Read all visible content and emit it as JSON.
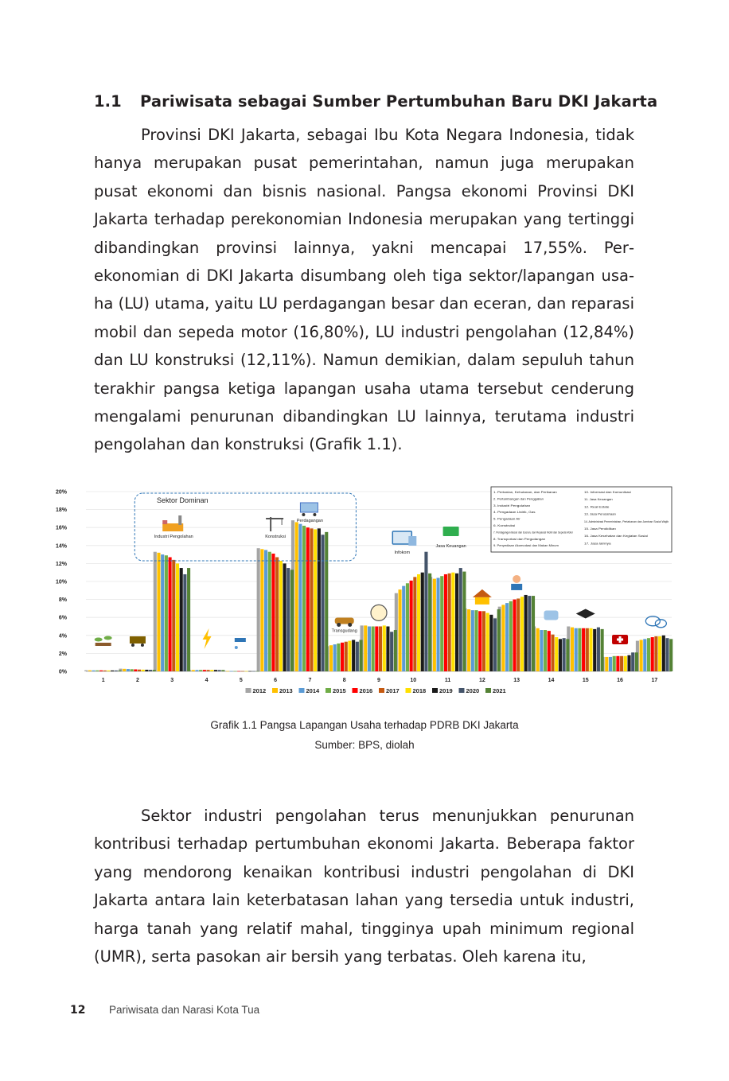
{
  "section": {
    "number": "1.1",
    "title": "Pariwisata sebagai Sumber Pertumbuhan Baru DKI Jakarta"
  },
  "paragraphs": [
    "Provinsi DKI Jakarta, sebagai Ibu Kota Negara Indonesia, tidak hanya merupakan pusat pemerintahan, namun juga merupakan pusat ekonomi dan bisnis nasional. Pangsa ekonomi Provinsi DKI Jakarta terhadap perekonomian Indonesia merupakan yang ter­tinggi dibandingkan provinsi lainnya, yakni mencapai 17,55%. Per­ekonomian di DKI Jakarta disumbang oleh tiga sektor/lapangan usa­ha (LU) utama, yaitu LU perdagangan besar dan eceran, dan reparasi mobil dan sepeda motor (16,80%), LU industri pengolahan (12,84%) dan LU konstruksi (12,11%). Namun demikian, dalam sepuluh tahun terakhir pangsa ketiga lapangan usaha utama tersebut cenderung mengalami penurunan dibandingkan LU lainnya, terutama industri pengolahan dan konstruksi (Grafik 1.1).",
    "Sektor industri pengolahan terus menunjukkan penurunan kontribusi terhadap pertumbuhan ekonomi Jakarta. Beberapa fak­tor yang mendorong kenaikan kontribusi industri pengolahan di DKI Jakarta antara lain keterbatasan lahan yang tersedia untuk indus­tri, harga tanah yang relatif mahal, tingginya upah minimum regio­nal (UMR), serta pasokan air bersih yang terbatas. Oleh karena itu,"
  ],
  "caption": {
    "title": "Grafik 1.1 Pangsa Lapangan Usaha terhadap PDRB DKI Jakarta",
    "source": "Sumber: BPS, diolah"
  },
  "footer": {
    "page_number": "12",
    "book_title": "Pariwisata dan Narasi Kota Tua"
  },
  "chart_data": {
    "type": "bar",
    "ylim": [
      0,
      20
    ],
    "yticks": [
      "0%",
      "2%",
      "4%",
      "6%",
      "8%",
      "10%",
      "12%",
      "14%",
      "16%",
      "18%",
      "20%"
    ],
    "categories": [
      "1",
      "2",
      "3",
      "4",
      "5",
      "6",
      "7",
      "8",
      "9",
      "10",
      "11",
      "12",
      "13",
      "14",
      "15",
      "16",
      "17"
    ],
    "dominant_box_label": "Sektor Dominan",
    "sector_labels": [
      {
        "category": "3",
        "text": "Industri Pengolahan",
        "icon": "factory-icon"
      },
      {
        "category": "6",
        "text": "Konstruksi",
        "icon": "crane-icon"
      },
      {
        "category": "7",
        "text": "Perdagangan",
        "icon": "shop-cart-icon"
      },
      {
        "category": "8",
        "text": "Transgudang",
        "icon": "car-icon"
      },
      {
        "category": "10",
        "text": "Infokom",
        "icon": "computer-icon"
      },
      {
        "category": "11",
        "text": "Jasa Keuangan",
        "icon": "money-icon"
      }
    ],
    "category_icons": [
      {
        "category": "1",
        "icon": "plant-icon"
      },
      {
        "category": "2",
        "icon": "mine-cart-icon"
      },
      {
        "category": "4",
        "icon": "lightning-icon"
      },
      {
        "category": "5",
        "icon": "water-tap-icon"
      },
      {
        "category": "9",
        "icon": "food-icon"
      },
      {
        "category": "12",
        "icon": "house-icon"
      },
      {
        "category": "13",
        "icon": "worker-icon"
      },
      {
        "category": "14",
        "icon": "government-icon"
      },
      {
        "category": "15",
        "icon": "graduation-cap-icon"
      },
      {
        "category": "16",
        "icon": "medical-kit-icon"
      },
      {
        "category": "17",
        "icon": "speech-bubble-icon"
      }
    ],
    "legend_position": "bottom",
    "series": [
      {
        "name": "2012",
        "color": "#a5a5a5",
        "values": [
          0.12,
          0.3,
          13.3,
          0.15,
          0.03,
          13.7,
          16.8,
          2.8,
          5.1,
          8.7,
          10.5,
          7.0,
          7.2,
          5.0,
          5.0,
          1.6,
          3.4
        ]
      },
      {
        "name": "2013",
        "color": "#ffc000",
        "values": [
          0.12,
          0.28,
          13.2,
          0.15,
          0.03,
          13.6,
          16.6,
          2.9,
          5.1,
          9.1,
          10.3,
          6.9,
          7.4,
          4.8,
          4.9,
          1.6,
          3.5
        ]
      },
      {
        "name": "2014",
        "color": "#5b9bd5",
        "values": [
          0.11,
          0.26,
          13.0,
          0.15,
          0.03,
          13.5,
          16.4,
          3.0,
          5.0,
          9.5,
          10.4,
          6.8,
          7.6,
          4.6,
          4.8,
          1.6,
          3.6
        ]
      },
      {
        "name": "2015",
        "color": "#70ad47",
        "values": [
          0.11,
          0.24,
          12.9,
          0.16,
          0.03,
          13.3,
          16.2,
          3.1,
          5.0,
          9.8,
          10.6,
          6.8,
          7.8,
          4.6,
          4.8,
          1.7,
          3.7
        ]
      },
      {
        "name": "2016",
        "color": "#ff0000",
        "values": [
          0.11,
          0.22,
          12.7,
          0.16,
          0.03,
          13.1,
          16.0,
          3.2,
          5.0,
          10.1,
          10.8,
          6.7,
          8.0,
          4.5,
          4.8,
          1.7,
          3.8
        ]
      },
      {
        "name": "2017",
        "color": "#c55a11",
        "values": [
          0.1,
          0.2,
          12.4,
          0.16,
          0.03,
          12.7,
          15.9,
          3.3,
          5.0,
          10.5,
          10.9,
          6.7,
          8.1,
          4.1,
          4.8,
          1.7,
          3.9
        ]
      },
      {
        "name": "2018",
        "color": "#ffe000",
        "values": [
          0.1,
          0.19,
          12.0,
          0.16,
          0.03,
          12.3,
          15.8,
          3.4,
          5.1,
          10.8,
          11.0,
          6.5,
          8.3,
          3.8,
          4.8,
          1.7,
          3.9
        ]
      },
      {
        "name": "2019",
        "color": "#1a1a1a",
        "values": [
          0.1,
          0.18,
          11.5,
          0.16,
          0.03,
          12.0,
          15.9,
          3.5,
          5.0,
          11.0,
          10.9,
          6.3,
          8.5,
          3.6,
          4.7,
          1.8,
          4.0
        ]
      },
      {
        "name": "2020",
        "color": "#44546a",
        "values": [
          0.1,
          0.17,
          10.8,
          0.15,
          0.03,
          11.5,
          15.2,
          3.3,
          4.4,
          13.3,
          11.5,
          5.9,
          8.4,
          3.7,
          4.9,
          2.1,
          3.7
        ]
      },
      {
        "name": "2021",
        "color": "#548235",
        "values": [
          0.1,
          0.16,
          11.5,
          0.15,
          0.03,
          11.3,
          15.5,
          3.5,
          4.6,
          10.9,
          11.1,
          6.9,
          8.4,
          3.6,
          4.7,
          2.1,
          3.6
        ]
      }
    ],
    "legend_sectors": [
      "1. Pertanian, Kehutanan, dan Perikanan",
      "2. Pertambangan dan Penggalian",
      "3. Industri Pengolahan",
      "4. Pengadaan Listrik, Gas",
      "5. Pengadaan Air",
      "6. Konstruksi",
      "7. Perdagangan Besar dan Eceran, dan Reparasi Mobil dan Sepeda Motor",
      "8. Transportasi dan Pergudangan",
      "9. Penyediaan Akomodasi dan Makan Minum",
      "10. Informasi dan Komunikasi",
      "11. Jasa Keuangan",
      "12. Real Estate",
      "13. Jasa Perusahaan",
      "14. Administrasi Pemerintahan, Pertahanan dan Jaminan Sosial Wajib",
      "15. Jasa Pendidikan",
      "16. Jasa Kesehatan dan Kegiatan Sosial",
      "17. Jasa lainnya"
    ]
  }
}
